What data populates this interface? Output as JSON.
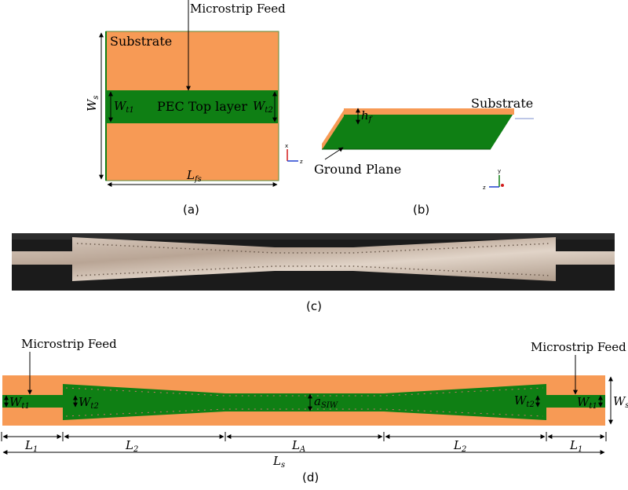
{
  "colors": {
    "substrate": "#f79a55",
    "pec": "#0f7f14",
    "photo_dark": "#1b1b1b",
    "photo_metal": "#c8b7a8",
    "line": "#000000"
  },
  "panel_a": {
    "feed_label": "Microstrip Feed",
    "substrate_label": "Substrate",
    "pec_label": "PEC Top layer",
    "wt1": "W",
    "wt1_sub": "t1",
    "wt2": "W",
    "wt2_sub": "t2",
    "ws": "W",
    "ws_sub": "s",
    "lfs": "L",
    "lfs_sub": "fs",
    "axis_x": "x",
    "axis_z": "z",
    "caption": "(a)"
  },
  "panel_b": {
    "hf": "h",
    "hf_sub": "f",
    "substrate_label": "Substrate",
    "ground_label": "Ground Plane",
    "axis_y": "y",
    "axis_z": "z",
    "caption": "(b)"
  },
  "panel_c": {
    "caption": "(c)"
  },
  "panel_d": {
    "feed_left_label": "Microstrip Feed",
    "feed_right_label": "Microstrip Feed",
    "wt1_left": "W",
    "wt1_left_sub": "t1",
    "wt2_left": "W",
    "wt2_left_sub": "t2",
    "asiw": "a",
    "asiw_sub": "SIW",
    "wt2_right": "W",
    "wt2_right_sub": "t2",
    "wt1_right": "W",
    "wt1_right_sub": "t1",
    "ws": "W",
    "ws_sub": "s",
    "l1_left": "L",
    "l1_left_sub": "1",
    "l2_left": "L",
    "l2_left_sub": "2",
    "la": "L",
    "la_sub": "A",
    "l2_right": "L",
    "l2_right_sub": "2",
    "l1_right": "L",
    "l1_right_sub": "1",
    "ls": "L",
    "ls_sub": "s",
    "caption": "(d)"
  }
}
